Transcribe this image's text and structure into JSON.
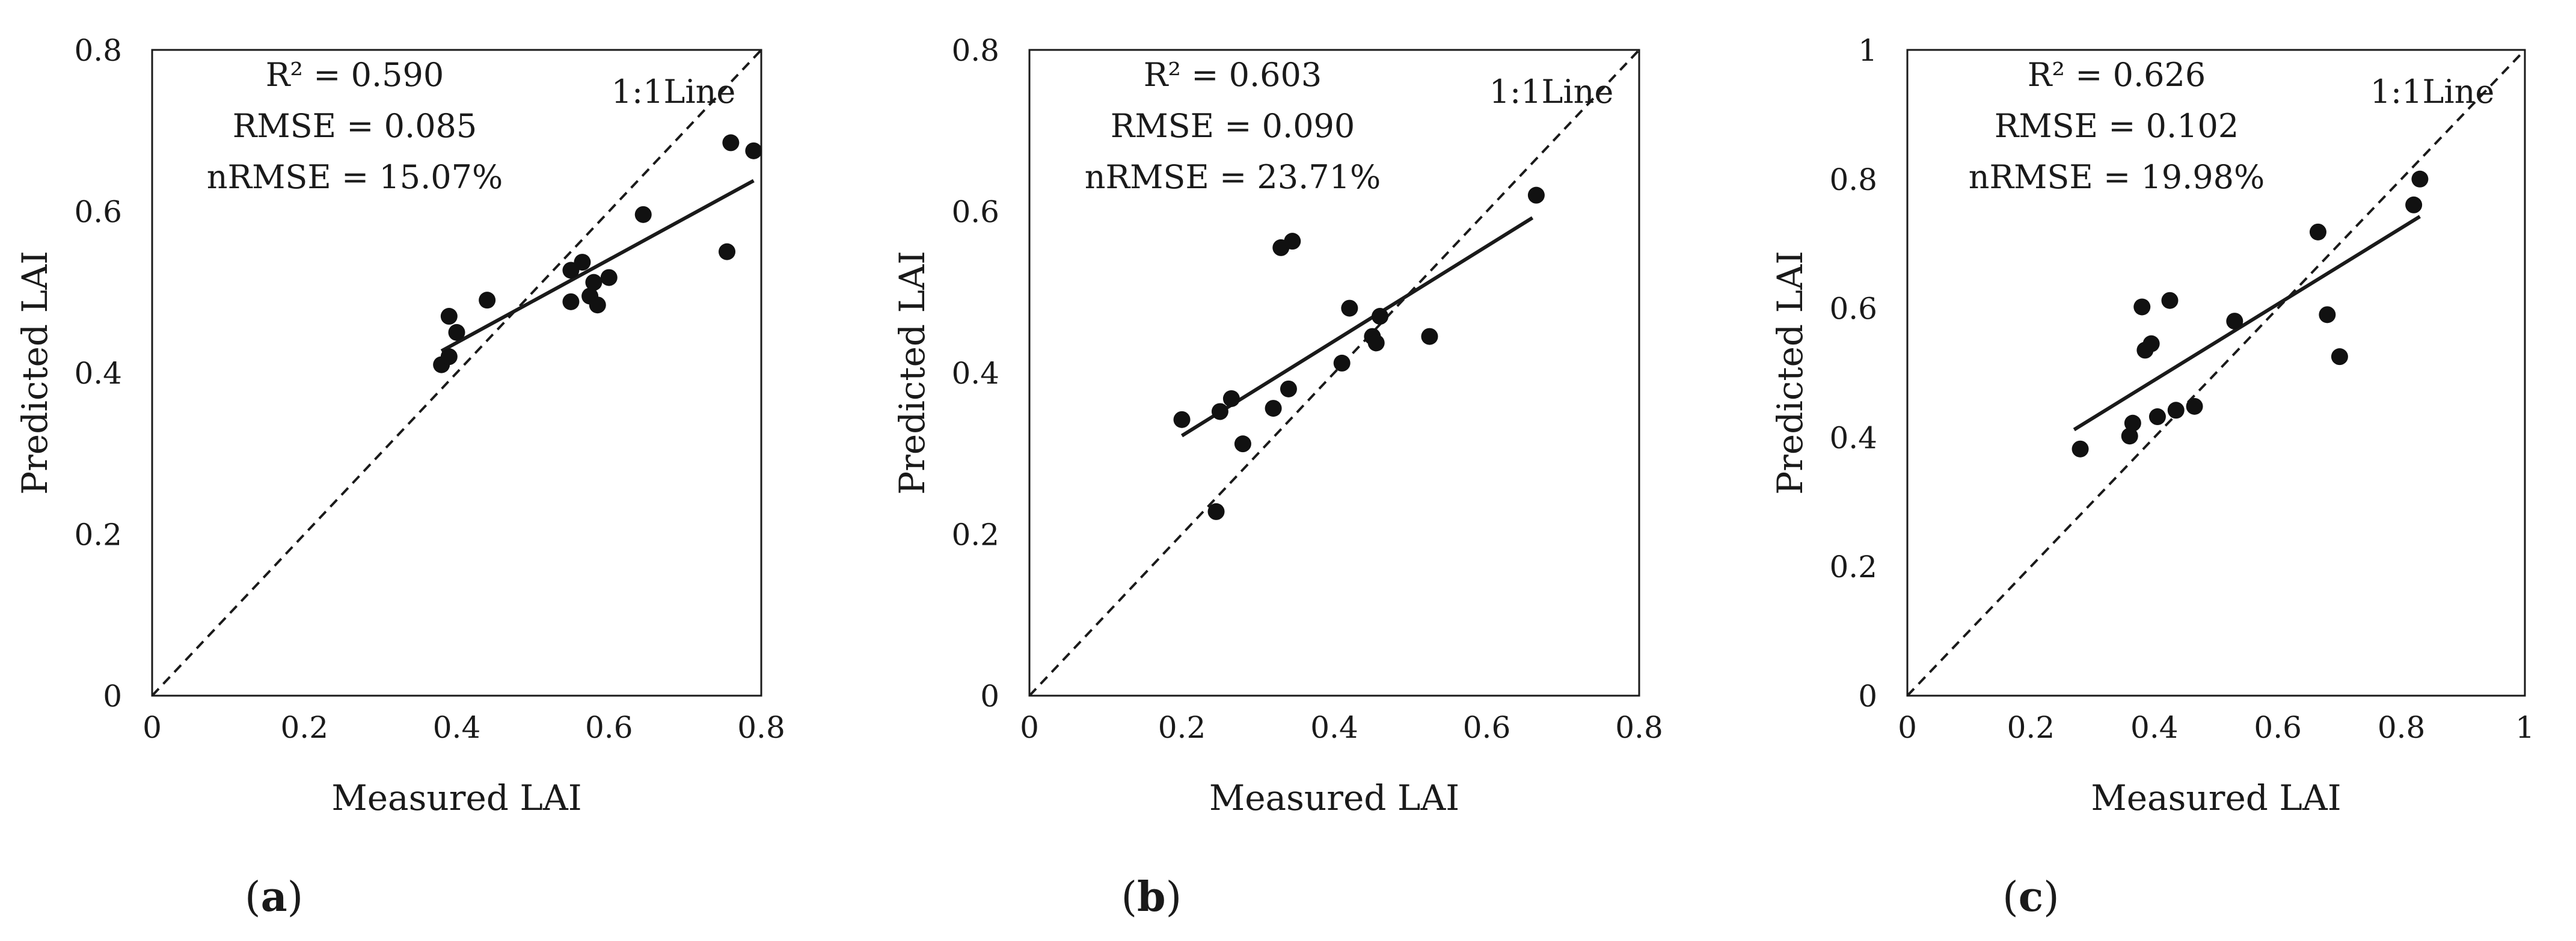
{
  "chart_data": [
    {
      "type": "scatter",
      "panel_label": "a",
      "xlabel": "Measured LAI",
      "ylabel": "Predicted LAI",
      "xlim": [
        0,
        0.8
      ],
      "ylim": [
        0,
        0.8
      ],
      "xticks": [
        "0",
        "0.2",
        "0.4",
        "0.6",
        "0.8"
      ],
      "yticks": [
        "0",
        "0.2",
        "0.4",
        "0.6",
        "0.8"
      ],
      "stats": [
        "R² = 0.590",
        "RMSE = 0.085",
        "nRMSE = 15.07%"
      ],
      "reference_line_label": "1:1Line",
      "reference_line": [
        [
          0,
          0
        ],
        [
          0.8,
          0.8
        ]
      ],
      "fit_line": [
        [
          0.38,
          0.427
        ],
        [
          0.79,
          0.638
        ]
      ],
      "points": [
        {
          "x": 0.38,
          "y": 0.41
        },
        {
          "x": 0.39,
          "y": 0.42
        },
        {
          "x": 0.39,
          "y": 0.47
        },
        {
          "x": 0.4,
          "y": 0.45
        },
        {
          "x": 0.44,
          "y": 0.49
        },
        {
          "x": 0.55,
          "y": 0.488
        },
        {
          "x": 0.55,
          "y": 0.527
        },
        {
          "x": 0.565,
          "y": 0.537
        },
        {
          "x": 0.575,
          "y": 0.495
        },
        {
          "x": 0.58,
          "y": 0.512
        },
        {
          "x": 0.585,
          "y": 0.484
        },
        {
          "x": 0.6,
          "y": 0.518
        },
        {
          "x": 0.645,
          "y": 0.596
        },
        {
          "x": 0.755,
          "y": 0.55
        },
        {
          "x": 0.76,
          "y": 0.685
        },
        {
          "x": 0.79,
          "y": 0.675
        }
      ]
    },
    {
      "type": "scatter",
      "panel_label": "b",
      "xlabel": "Measured LAI",
      "ylabel": "Predicted LAI",
      "xlim": [
        0,
        0.8
      ],
      "ylim": [
        0,
        0.8
      ],
      "xticks": [
        "0",
        "0.2",
        "0.4",
        "0.6",
        "0.8"
      ],
      "yticks": [
        "0",
        "0.2",
        "0.4",
        "0.6",
        "0.8"
      ],
      "stats": [
        "R² = 0.603",
        "RMSE = 0.090",
        "nRMSE = 23.71%"
      ],
      "reference_line_label": "1:1Line",
      "reference_line": [
        [
          0,
          0
        ],
        [
          0.8,
          0.8
        ]
      ],
      "fit_line": [
        [
          0.2,
          0.322
        ],
        [
          0.66,
          0.592
        ]
      ],
      "points": [
        {
          "x": 0.2,
          "y": 0.342
        },
        {
          "x": 0.245,
          "y": 0.228
        },
        {
          "x": 0.25,
          "y": 0.352
        },
        {
          "x": 0.265,
          "y": 0.368
        },
        {
          "x": 0.28,
          "y": 0.312
        },
        {
          "x": 0.32,
          "y": 0.356
        },
        {
          "x": 0.33,
          "y": 0.555
        },
        {
          "x": 0.34,
          "y": 0.38
        },
        {
          "x": 0.345,
          "y": 0.563
        },
        {
          "x": 0.41,
          "y": 0.412
        },
        {
          "x": 0.42,
          "y": 0.48
        },
        {
          "x": 0.45,
          "y": 0.445
        },
        {
          "x": 0.455,
          "y": 0.437
        },
        {
          "x": 0.46,
          "y": 0.47
        },
        {
          "x": 0.525,
          "y": 0.445
        },
        {
          "x": 0.665,
          "y": 0.62
        }
      ]
    },
    {
      "type": "scatter",
      "panel_label": "c",
      "xlabel": "Measured LAI",
      "ylabel": "Predicted LAI",
      "xlim": [
        0,
        1
      ],
      "ylim": [
        0,
        1
      ],
      "xticks": [
        "0",
        "0.2",
        "0.4",
        "0.6",
        "0.8",
        "1"
      ],
      "yticks": [
        "0",
        "0.2",
        "0.4",
        "0.6",
        "0.8",
        "1"
      ],
      "stats": [
        "R² = 0.626",
        "RMSE = 0.102",
        "nRMSE = 19.98%"
      ],
      "reference_line_label": "1:1Line",
      "reference_line": [
        [
          0,
          0
        ],
        [
          1,
          1
        ]
      ],
      "fit_line": [
        [
          0.27,
          0.412
        ],
        [
          0.83,
          0.742
        ]
      ],
      "points": [
        {
          "x": 0.28,
          "y": 0.382
        },
        {
          "x": 0.36,
          "y": 0.402
        },
        {
          "x": 0.365,
          "y": 0.422
        },
        {
          "x": 0.38,
          "y": 0.602
        },
        {
          "x": 0.385,
          "y": 0.535
        },
        {
          "x": 0.395,
          "y": 0.545
        },
        {
          "x": 0.405,
          "y": 0.432
        },
        {
          "x": 0.425,
          "y": 0.612
        },
        {
          "x": 0.435,
          "y": 0.442
        },
        {
          "x": 0.465,
          "y": 0.448
        },
        {
          "x": 0.53,
          "y": 0.58
        },
        {
          "x": 0.665,
          "y": 0.718
        },
        {
          "x": 0.68,
          "y": 0.59
        },
        {
          "x": 0.7,
          "y": 0.525
        },
        {
          "x": 0.82,
          "y": 0.76
        },
        {
          "x": 0.83,
          "y": 0.8
        }
      ]
    }
  ]
}
